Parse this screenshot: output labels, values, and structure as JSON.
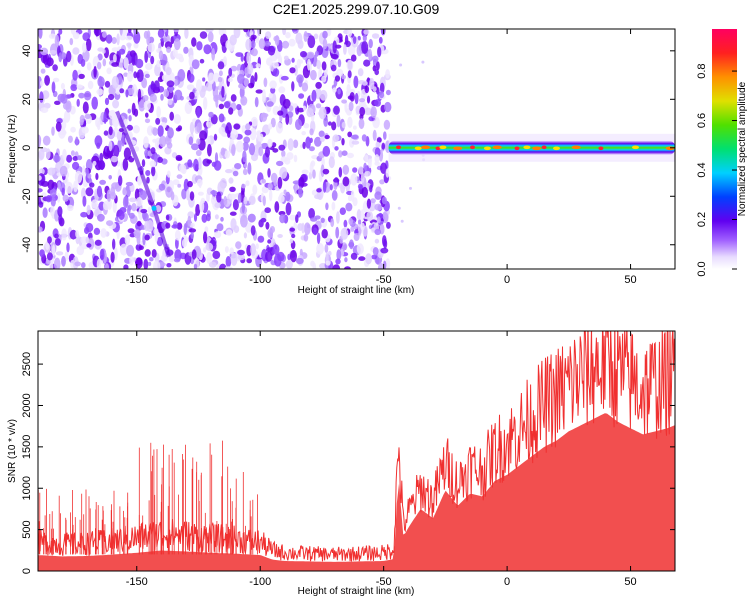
{
  "figure_title": "C2E1.2025.299.07.10.G09",
  "colors": {
    "series_red": "#f03030",
    "axis": "#000000",
    "background": "#ffffff"
  },
  "chart_data": [
    {
      "type": "heatmap",
      "id": "spectrogram",
      "xlabel": "Height of straight line (km)",
      "ylabel": "Frequency (Hz)",
      "xlim": [
        -190,
        68
      ],
      "ylim": [
        -50,
        49
      ],
      "xticks": [
        -150,
        -100,
        -50,
        0,
        50
      ],
      "yticks": [
        -40,
        -20,
        0,
        20,
        40
      ],
      "colorbar": {
        "label": "Normalized spectral amplitude",
        "range": [
          0,
          0.97
        ],
        "ticks": [
          0.0,
          0.2,
          0.4,
          0.6,
          0.8
        ]
      },
      "regions": [
        {
          "name": "noise",
          "x_range": [
            -190,
            -48
          ],
          "y_range": [
            -50,
            49
          ],
          "typical_amplitude": 0.1
        },
        {
          "name": "tone",
          "x_range": [
            -48,
            68
          ],
          "center_frequency_hz": 0,
          "typical_amplitude": 0.5,
          "peak_amplitude": 0.97
        }
      ],
      "features": [
        {
          "name": "diagonal streak",
          "points": [
            [
              -158,
              15
            ],
            [
              -150,
              -5
            ],
            [
              -143,
              -25
            ],
            [
              -137,
              -45
            ]
          ]
        }
      ]
    },
    {
      "type": "line",
      "id": "snr",
      "xlabel": "Height of straight line (km)",
      "ylabel": "SNR (10 * v/v)",
      "xlim": [
        -190,
        68
      ],
      "ylim": [
        0,
        2900
      ],
      "xticks": [
        -150,
        -100,
        -50,
        0,
        50
      ],
      "yticks": [
        0,
        500,
        1000,
        1500,
        2000,
        2500
      ],
      "series": [
        {
          "name": "SNR",
          "x": [
            -190,
            -180,
            -170,
            -160,
            -150,
            -140,
            -130,
            -120,
            -110,
            -100,
            -95,
            -90,
            -80,
            -70,
            -60,
            -50,
            -46,
            -44,
            -42,
            -40,
            -35,
            -30,
            -25,
            -20,
            -15,
            -10,
            -5,
            0,
            5,
            10,
            15,
            20,
            25,
            30,
            35,
            40,
            45,
            50,
            55,
            60,
            65,
            68
          ],
          "y": [
            350,
            320,
            330,
            360,
            400,
            450,
            430,
            400,
            380,
            350,
            250,
            220,
            210,
            200,
            210,
            220,
            260,
            1500,
            550,
            700,
            1000,
            850,
            1300,
            1050,
            1250,
            1200,
            1450,
            1550,
            1700,
            1850,
            2000,
            2100,
            2250,
            2350,
            2450,
            2550,
            2400,
            2300,
            2200,
            2250,
            2300,
            2350
          ]
        }
      ],
      "spikes": [
        {
          "x_range": [
            -190,
            -150
          ],
          "max": 1000
        },
        {
          "x_range": [
            -150,
            -128
          ],
          "max": 1550
        },
        {
          "x_range": [
            -128,
            -100
          ],
          "max": 1600
        }
      ]
    }
  ]
}
